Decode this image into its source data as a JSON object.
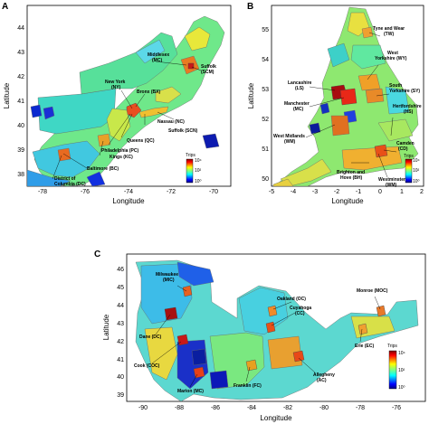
{
  "colors": {
    "colormap": [
      "#00007f",
      "#0000ff",
      "#0080ff",
      "#00ffff",
      "#80ff80",
      "#ffff00",
      "#ff8000",
      "#ff0000",
      "#7f0000"
    ],
    "background": "#ffffff",
    "frame": "#000000",
    "region_border": "#6b6b6b"
  },
  "panels": [
    {
      "id": "A",
      "letter": "A",
      "xlabel": "Longitude",
      "ylabel": "Latitude",
      "xticks": [
        "-78",
        "-76",
        "-74",
        "-72",
        "-70"
      ],
      "yticks": [
        "38",
        "39",
        "40",
        "41",
        "42",
        "43",
        "44"
      ],
      "xlim": [
        -79,
        -69.5
      ],
      "ylim": [
        37.6,
        44.9
      ],
      "colorbar": {
        "title": "Trips",
        "ticks": [
          "10⁰",
          "10²",
          "10⁴"
        ]
      },
      "labels": [
        {
          "name": "Middlesex",
          "code": "(MC)"
        },
        {
          "name": "Suffolk",
          "code": "(SCM)"
        },
        {
          "name": "New York",
          "code": "(NY)"
        },
        {
          "name": "Bronx (BX)",
          "code": ""
        },
        {
          "name": "Nassau (NC)",
          "code": ""
        },
        {
          "name": "Suffolk (SCN)",
          "code": ""
        },
        {
          "name": "Queens (QC)",
          "code": ""
        },
        {
          "name": "Kings (KC)",
          "code": ""
        },
        {
          "name": "Philadelphia (PC)",
          "code": ""
        },
        {
          "name": "Baltimore (BC)",
          "code": ""
        },
        {
          "name": "District of",
          "code": "Columbia (DC)"
        }
      ]
    },
    {
      "id": "B",
      "letter": "B",
      "xlabel": "Longitude",
      "ylabel": "Latitude",
      "xticks": [
        "-5",
        "-4",
        "-3",
        "-2",
        "-1",
        "0",
        "1",
        "2"
      ],
      "yticks": [
        "50",
        "51",
        "52",
        "53",
        "54",
        "55"
      ],
      "xlim": [
        -5,
        2
      ],
      "ylim": [
        49.8,
        55.9
      ],
      "colorbar": {
        "title": "Trips",
        "ticks": [
          "10⁰",
          "10²",
          "10⁴"
        ]
      },
      "labels": [
        {
          "name": "Tyne and Wear",
          "code": "(TW)"
        },
        {
          "name": "West",
          "code": "Yorkshire (WY)"
        },
        {
          "name": "Lancashire",
          "code": "(LS)"
        },
        {
          "name": "South",
          "code": "Yorkshire (SY)"
        },
        {
          "name": "Manchester",
          "code": "(MC)"
        },
        {
          "name": "Hertfordshire",
          "code": "(HS)"
        },
        {
          "name": "West Midlands",
          "code": "(WM)"
        },
        {
          "name": "Camden",
          "code": "(CD)"
        },
        {
          "name": "Brighton and",
          "code": "Hove (BH)"
        },
        {
          "name": "Westminster",
          "code": "(WM)"
        }
      ]
    },
    {
      "id": "C",
      "letter": "C",
      "xlabel": "Longitude",
      "ylabel": "Latitude",
      "xticks": [
        "-90",
        "-88",
        "-86",
        "-84",
        "-82",
        "-80",
        "-78",
        "-76"
      ],
      "yticks": [
        "39",
        "40",
        "41",
        "42",
        "43",
        "44",
        "45",
        "46"
      ],
      "xlim": [
        -91.5,
        -75
      ],
      "ylim": [
        38.2,
        46.8
      ],
      "colorbar": {
        "title": "Trips",
        "ticks": [
          "10⁰",
          "10²",
          "10⁴"
        ]
      },
      "labels": [
        {
          "name": "Milwaukee",
          "code": "(MIC)"
        },
        {
          "name": "Oakland (OC)",
          "code": ""
        },
        {
          "name": "Monroe (MOC)",
          "code": ""
        },
        {
          "name": "Cuyahoga",
          "code": "(CC)"
        },
        {
          "name": "Dane (DC)",
          "code": ""
        },
        {
          "name": "Erie (EC)",
          "code": ""
        },
        {
          "name": "Cook (COC)",
          "code": ""
        },
        {
          "name": "Allegheny",
          "code": "(AC)"
        },
        {
          "name": "Marion (MC)",
          "code": ""
        },
        {
          "name": "Franklin (FC)",
          "code": ""
        }
      ]
    }
  ]
}
